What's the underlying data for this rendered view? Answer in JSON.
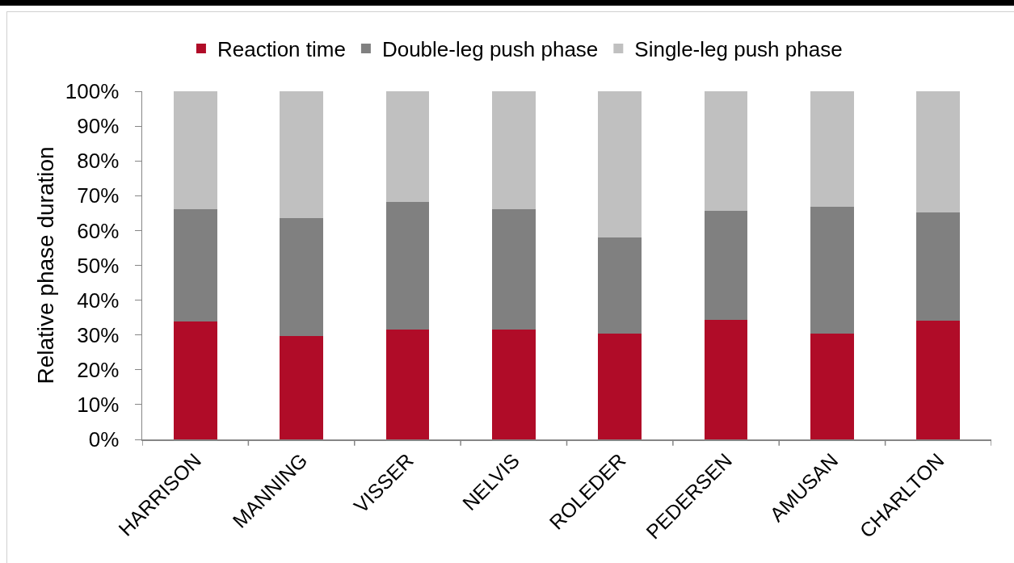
{
  "chart_data": {
    "type": "bar",
    "stacked": true,
    "legend": "top",
    "ylabel": "Relative phase duration",
    "categories": [
      "HARRISON",
      "MANNING",
      "VISSER",
      "NELVIS",
      "ROLEDER",
      "PEDERSEN",
      "AMUSAN",
      "CHARLTON"
    ],
    "series": [
      {
        "name": "Reaction time",
        "color": "#b00c28",
        "values": [
          33.9,
          29.7,
          31.6,
          31.6,
          30.4,
          34.3,
          30.5,
          34.0
        ]
      },
      {
        "name": "Double-leg push phase",
        "color": "#808080",
        "values": [
          32.3,
          33.9,
          36.5,
          34.6,
          27.6,
          31.4,
          36.4,
          31.2
        ]
      },
      {
        "name": "Single-leg push phase",
        "color": "#c0c0c0",
        "values": [
          33.8,
          36.4,
          31.9,
          33.8,
          42.0,
          34.3,
          33.1,
          34.8
        ]
      }
    ],
    "ylim": [
      0,
      100
    ],
    "yticks": [
      {
        "value": 0,
        "label": "0%"
      },
      {
        "value": 10,
        "label": "10%"
      },
      {
        "value": 20,
        "label": "20%"
      },
      {
        "value": 30,
        "label": "30%"
      },
      {
        "value": 40,
        "label": "40%"
      },
      {
        "value": 50,
        "label": "50%"
      },
      {
        "value": 60,
        "label": "60%"
      },
      {
        "value": 70,
        "label": "70%"
      },
      {
        "value": 80,
        "label": "80%"
      },
      {
        "value": 90,
        "label": "90%"
      },
      {
        "value": 100,
        "label": "100%"
      }
    ]
  }
}
